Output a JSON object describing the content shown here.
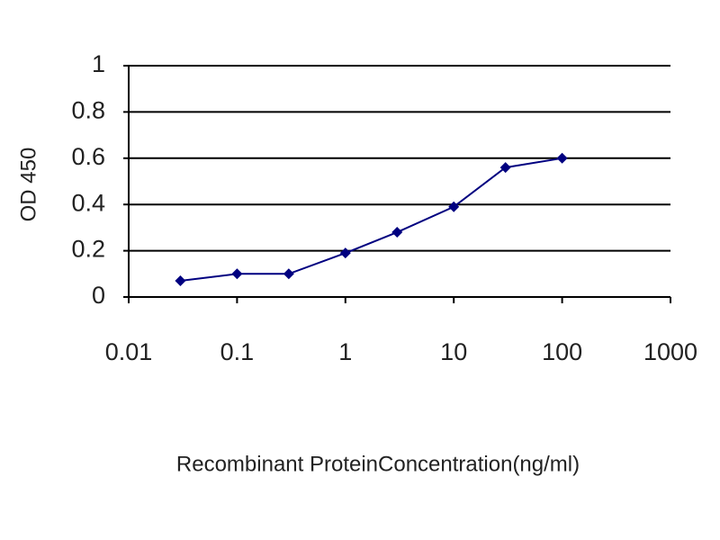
{
  "chart_data": {
    "type": "line",
    "x_label": "Recombinant ProteinConcentration(ng/ml)",
    "y_label": "OD 450",
    "x": [
      0.03,
      0.1,
      0.3,
      1,
      3,
      10,
      30,
      100
    ],
    "series": [
      {
        "color": "#000080",
        "values": [
          0.07,
          0.1,
          0.1,
          0.19,
          0.28,
          0.39,
          0.56,
          0.6
        ]
      }
    ],
    "xlim": [
      0.01,
      1000
    ],
    "xticks": [
      0.01,
      0.1,
      1,
      10,
      100,
      1000
    ],
    "x_log": true,
    "ylim": [
      0,
      1
    ],
    "yticks": [
      0,
      0.2,
      0.4,
      0.6,
      0.8,
      1
    ],
    "grid": true
  }
}
